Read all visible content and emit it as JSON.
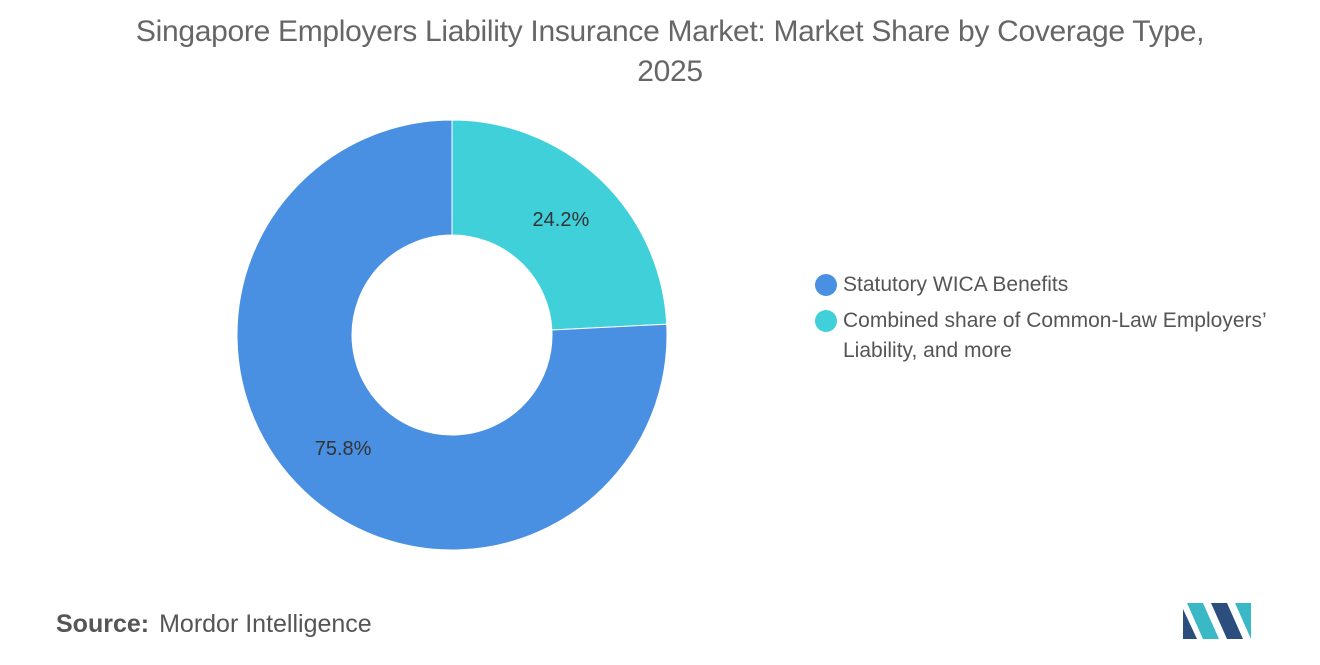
{
  "title": "Singapore Employers Liability Insurance Market: Market Share by Coverage Type, 2025",
  "source": {
    "label": "Source:",
    "value": "Mordor Intelligence"
  },
  "colors": {
    "statutory": "#4A90E2",
    "common_law": "#3FD0DA",
    "logo_dark": "#2B4E7E",
    "logo_teal": "#3AB8C6"
  },
  "chart_data": {
    "type": "pie",
    "donut": true,
    "title": "Singapore Employers Liability Insurance Market: Market Share by Coverage Type, 2025",
    "categories": [
      "Combined share of Common-Law Employers’ Liability, and more",
      "Statutory WICA Benefits"
    ],
    "values": [
      24.2,
      75.8
    ],
    "value_labels": [
      "24.2%",
      "75.8%"
    ],
    "colors": [
      "#3FD0DA",
      "#4A90E2"
    ],
    "legend_placement": "right",
    "legend": [
      {
        "label": "Statutory WICA Benefits",
        "color": "#4A90E2"
      },
      {
        "label": "Combined share of Common-Law Employers’ Liability, and more",
        "color": "#3FD0DA"
      }
    ]
  }
}
